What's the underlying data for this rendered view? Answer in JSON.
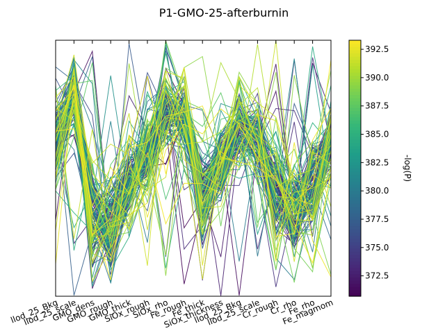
{
  "chart_data": {
    "type": "line",
    "subtype": "parallel-coordinates",
    "title": "P1-GMO-25-afterburnin",
    "axis_labels": [
      "llod_25_Bkg",
      "llod_25_scale",
      "GMO_dens",
      "GMO_rough",
      "GMO_thick",
      "SiOx_rough",
      "SiOx_rho",
      "Fe_rough",
      "Fe_thick",
      "SiOx_thickness",
      "llod_25_Bkg",
      "llod_25_scale",
      "Cr_rough",
      "Cr_rho",
      "Fe_rho",
      "Fe_magmom"
    ],
    "colorbar": {
      "label": "-log(P)",
      "range": [
        370.7,
        393.3
      ],
      "ticks": [
        "372.5",
        "375.0",
        "377.5",
        "380.0",
        "382.5",
        "385.0",
        "387.5",
        "390.0",
        "392.5"
      ],
      "tick_values": [
        372.5,
        375.0,
        377.5,
        380.0,
        382.5,
        385.0,
        387.5,
        390.0,
        392.5
      ],
      "colormap": "viridis"
    },
    "ylim": [
      0,
      1
    ],
    "grid": false,
    "n_lines": 150
  }
}
